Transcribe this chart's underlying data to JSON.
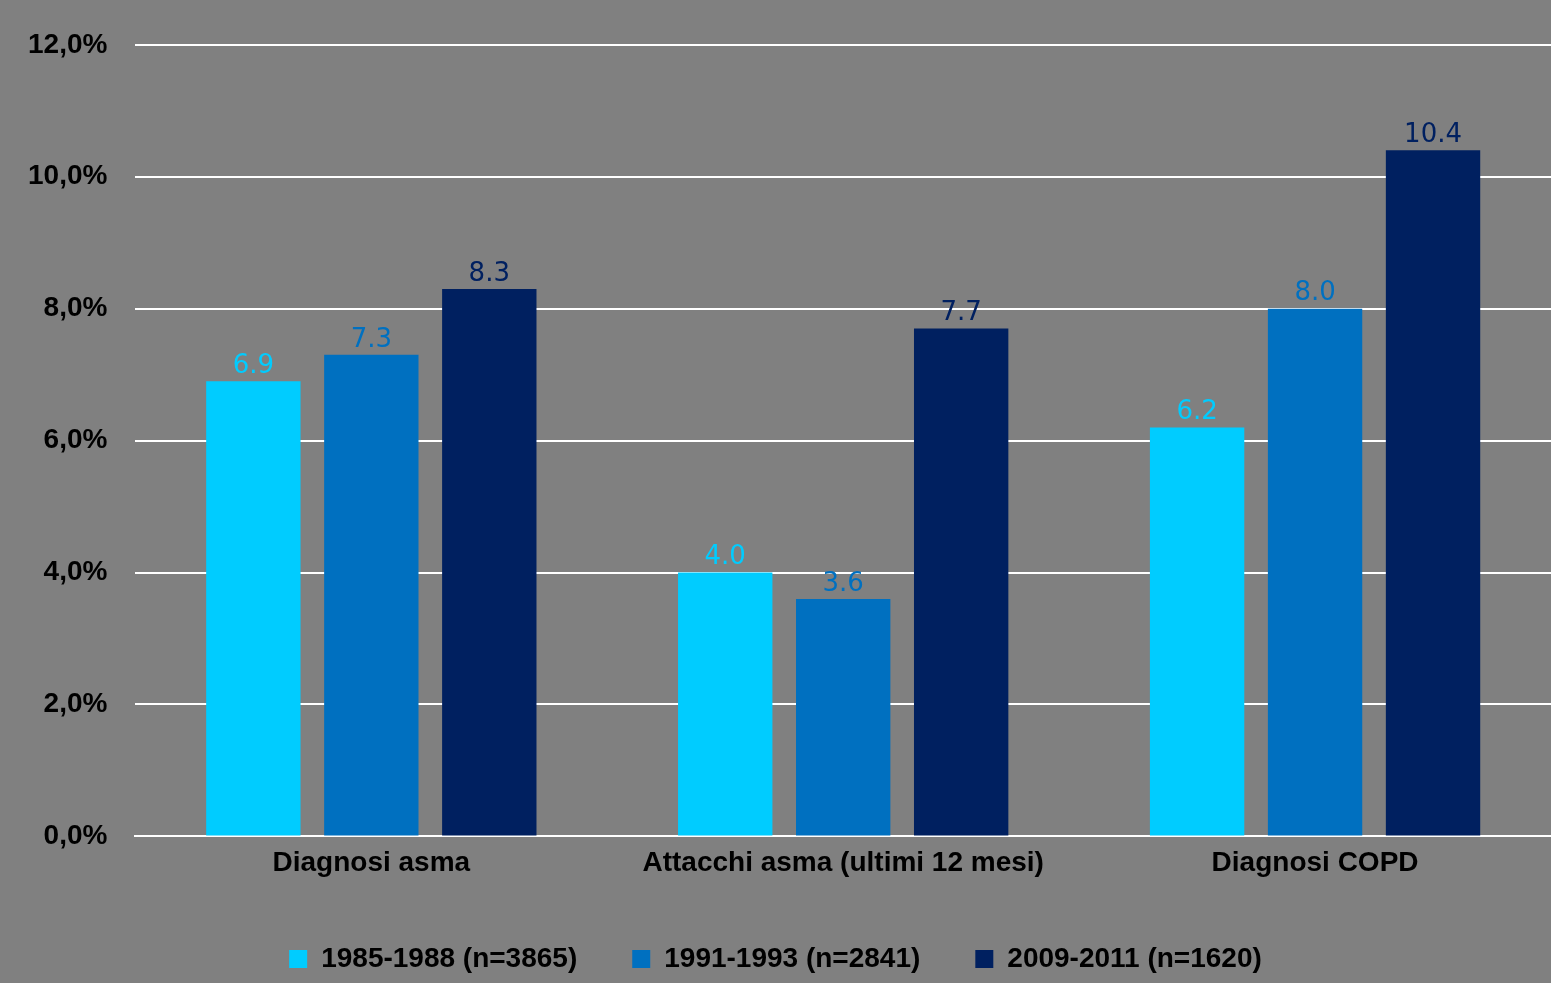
{
  "chart_data": {
    "type": "bar",
    "categories": [
      "Diagnosi asma",
      "Attacchi asma (ultimi 12 mesi)",
      "Diagnosi COPD"
    ],
    "series": [
      {
        "name": "1985-1988 (n=3865)",
        "color": "#00ccff",
        "values": [
          6.9,
          4.0,
          6.2
        ],
        "value_labels": [
          "6.9",
          "4.0",
          "6.2"
        ]
      },
      {
        "name": "1991-1993 (n=2841)",
        "color": "#0070c0",
        "values": [
          7.3,
          3.6,
          8.0
        ],
        "value_labels": [
          "7.3",
          "3.6",
          "8.0"
        ]
      },
      {
        "name": "2009-2011 (n=1620)",
        "color": "#002060",
        "values": [
          8.3,
          7.7,
          10.4
        ],
        "value_labels": [
          "8.3",
          "7.7",
          "10.4"
        ]
      }
    ],
    "ylim": [
      0,
      12
    ],
    "yticks": [
      {
        "value": 0,
        "label": "0,0%"
      },
      {
        "value": 2,
        "label": "2,0%"
      },
      {
        "value": 4,
        "label": "4,0%"
      },
      {
        "value": 6,
        "label": "6,0%"
      },
      {
        "value": 8,
        "label": "8,0%"
      },
      {
        "value": 10,
        "label": "10,0%"
      },
      {
        "value": 12,
        "label": "12,0%"
      }
    ],
    "grid": "y",
    "legend": "bottom"
  }
}
